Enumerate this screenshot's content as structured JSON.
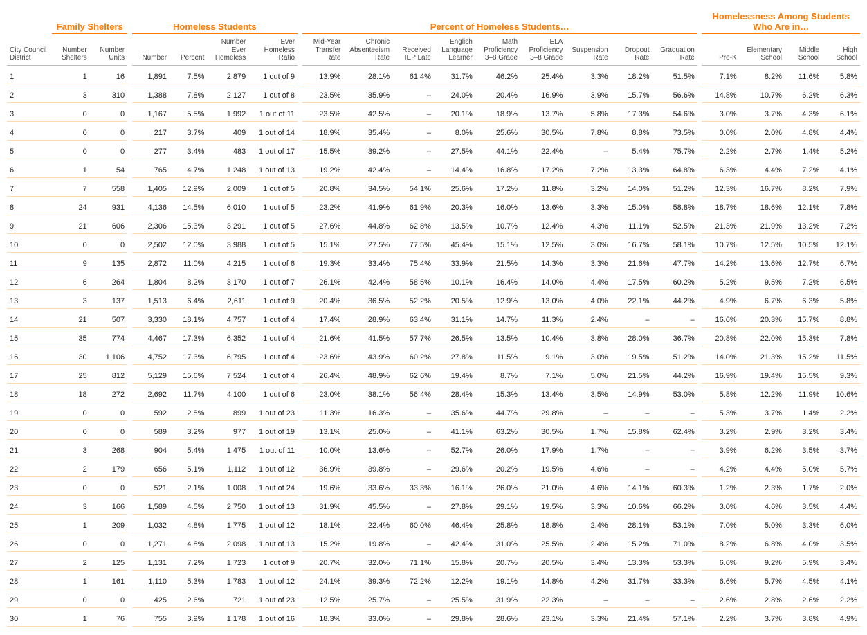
{
  "accent_color": "#ff7900",
  "row_border_color": "#ffd9b3",
  "groups": [
    {
      "label": "Family Shelters",
      "span": 2
    },
    {
      "label": "Homeless Students",
      "span": 4
    },
    {
      "label": "Percent of Homeless Students…",
      "span": 9
    },
    {
      "label": "Homelessness Among Students Who Are in…",
      "span": 4
    }
  ],
  "columns": [
    "City Council District",
    "Number Shelters",
    "Number Units",
    "Number",
    "Percent",
    "Number Ever Homeless",
    "Ever Homeless Ratio",
    "Mid-Year Transfer Rate",
    "Chronic Absenteeism Rate",
    "Received IEP Late",
    "English Language Learner",
    "Math Proficiency 3–8 Grade",
    "ELA Proficiency 3–8 Grade",
    "Suspension Rate",
    "Dropout Rate",
    "Graduation Rate",
    "Pre-K",
    "Elementary School",
    "Middle School",
    "High School"
  ],
  "rows": [
    [
      "1",
      "1",
      "16",
      "1,891",
      "7.5%",
      "2,879",
      "1 out of 9",
      "13.9%",
      "28.1%",
      "61.4%",
      "31.7%",
      "46.2%",
      "25.4%",
      "3.3%",
      "18.2%",
      "51.5%",
      "7.1%",
      "8.2%",
      "11.6%",
      "5.8%"
    ],
    [
      "2",
      "3",
      "310",
      "1,388",
      "7.8%",
      "2,127",
      "1 out of 8",
      "23.5%",
      "35.9%",
      "–",
      "24.0%",
      "20.4%",
      "16.9%",
      "3.9%",
      "15.7%",
      "56.6%",
      "14.8%",
      "10.7%",
      "6.2%",
      "6.3%"
    ],
    [
      "3",
      "0",
      "0",
      "1,167",
      "5.5%",
      "1,992",
      "1 out of 11",
      "23.5%",
      "42.5%",
      "–",
      "20.1%",
      "18.9%",
      "13.7%",
      "5.8%",
      "17.3%",
      "54.6%",
      "3.0%",
      "3.7%",
      "4.3%",
      "6.1%"
    ],
    [
      "4",
      "0",
      "0",
      "217",
      "3.7%",
      "409",
      "1 out of 14",
      "18.9%",
      "35.4%",
      "–",
      "8.0%",
      "25.6%",
      "30.5%",
      "7.8%",
      "8.8%",
      "73.5%",
      "0.0%",
      "2.0%",
      "4.8%",
      "4.4%"
    ],
    [
      "5",
      "0",
      "0",
      "277",
      "3.4%",
      "483",
      "1 out of 17",
      "15.5%",
      "39.2%",
      "–",
      "27.5%",
      "44.1%",
      "22.4%",
      "–",
      "5.4%",
      "75.7%",
      "2.2%",
      "2.7%",
      "1.4%",
      "5.2%"
    ],
    [
      "6",
      "1",
      "54",
      "765",
      "4.7%",
      "1,248",
      "1 out of 13",
      "19.2%",
      "42.4%",
      "–",
      "14.4%",
      "16.8%",
      "17.2%",
      "7.2%",
      "13.3%",
      "64.8%",
      "6.3%",
      "4.4%",
      "7.2%",
      "4.1%"
    ],
    [
      "7",
      "7",
      "558",
      "1,405",
      "12.9%",
      "2,009",
      "1 out of 5",
      "20.8%",
      "34.5%",
      "54.1%",
      "25.6%",
      "17.2%",
      "11.8%",
      "3.2%",
      "14.0%",
      "51.2%",
      "12.3%",
      "16.7%",
      "8.2%",
      "7.9%"
    ],
    [
      "8",
      "24",
      "931",
      "4,136",
      "14.5%",
      "6,010",
      "1 out of 5",
      "23.2%",
      "41.9%",
      "61.9%",
      "20.3%",
      "16.0%",
      "13.6%",
      "3.3%",
      "15.0%",
      "58.8%",
      "18.7%",
      "18.6%",
      "12.1%",
      "7.8%"
    ],
    [
      "9",
      "21",
      "606",
      "2,306",
      "15.3%",
      "3,291",
      "1 out of 5",
      "27.6%",
      "44.8%",
      "62.8%",
      "13.5%",
      "10.7%",
      "12.4%",
      "4.3%",
      "11.1%",
      "52.5%",
      "21.3%",
      "21.9%",
      "13.2%",
      "7.2%"
    ],
    [
      "10",
      "0",
      "0",
      "2,502",
      "12.0%",
      "3,988",
      "1 out of 5",
      "15.1%",
      "27.5%",
      "77.5%",
      "45.4%",
      "15.1%",
      "12.5%",
      "3.0%",
      "16.7%",
      "58.1%",
      "10.7%",
      "12.5%",
      "10.5%",
      "12.1%"
    ],
    [
      "11",
      "9",
      "135",
      "2,872",
      "11.0%",
      "4,215",
      "1 out of 6",
      "19.3%",
      "33.4%",
      "75.4%",
      "33.9%",
      "21.5%",
      "14.3%",
      "3.3%",
      "21.6%",
      "47.7%",
      "14.2%",
      "13.6%",
      "12.7%",
      "6.7%"
    ],
    [
      "12",
      "6",
      "264",
      "1,804",
      "8.2%",
      "3,170",
      "1 out of 7",
      "26.1%",
      "42.4%",
      "58.5%",
      "10.1%",
      "16.4%",
      "14.0%",
      "4.4%",
      "17.5%",
      "60.2%",
      "5.2%",
      "9.5%",
      "7.2%",
      "6.5%"
    ],
    [
      "13",
      "3",
      "137",
      "1,513",
      "6.4%",
      "2,611",
      "1 out of 9",
      "20.4%",
      "36.5%",
      "52.2%",
      "20.5%",
      "12.9%",
      "13.0%",
      "4.0%",
      "22.1%",
      "44.2%",
      "4.9%",
      "6.7%",
      "6.3%",
      "5.8%"
    ],
    [
      "14",
      "21",
      "507",
      "3,330",
      "18.1%",
      "4,757",
      "1 out of 4",
      "17.4%",
      "28.9%",
      "63.4%",
      "31.1%",
      "14.7%",
      "11.3%",
      "2.4%",
      "–",
      "–",
      "16.6%",
      "20.3%",
      "15.7%",
      "8.8%"
    ],
    [
      "15",
      "35",
      "774",
      "4,467",
      "17.3%",
      "6,352",
      "1 out of 4",
      "21.6%",
      "41.5%",
      "57.7%",
      "26.5%",
      "13.5%",
      "10.4%",
      "3.8%",
      "28.0%",
      "36.7%",
      "20.8%",
      "22.0%",
      "15.3%",
      "7.8%"
    ],
    [
      "16",
      "30",
      "1,106",
      "4,752",
      "17.3%",
      "6,795",
      "1 out of 4",
      "23.6%",
      "43.9%",
      "60.2%",
      "27.8%",
      "11.5%",
      "9.1%",
      "3.0%",
      "19.5%",
      "51.2%",
      "14.0%",
      "21.3%",
      "15.2%",
      "11.5%"
    ],
    [
      "17",
      "25",
      "812",
      "5,129",
      "15.6%",
      "7,524",
      "1 out of 4",
      "26.4%",
      "48.9%",
      "62.6%",
      "19.4%",
      "8.7%",
      "7.1%",
      "5.0%",
      "21.5%",
      "44.2%",
      "16.9%",
      "19.4%",
      "15.5%",
      "9.3%"
    ],
    [
      "18",
      "18",
      "272",
      "2,692",
      "11.7%",
      "4,100",
      "1 out of 6",
      "23.0%",
      "38.1%",
      "56.4%",
      "28.4%",
      "15.3%",
      "13.4%",
      "3.5%",
      "14.9%",
      "53.0%",
      "5.8%",
      "12.2%",
      "11.9%",
      "10.6%"
    ],
    [
      "19",
      "0",
      "0",
      "592",
      "2.8%",
      "899",
      "1 out of 23",
      "11.3%",
      "16.3%",
      "–",
      "35.6%",
      "44.7%",
      "29.8%",
      "–",
      "–",
      "–",
      "5.3%",
      "3.7%",
      "1.4%",
      "2.2%"
    ],
    [
      "20",
      "0",
      "0",
      "589",
      "3.2%",
      "977",
      "1 out of 19",
      "13.1%",
      "25.0%",
      "–",
      "41.1%",
      "63.2%",
      "30.5%",
      "1.7%",
      "15.8%",
      "62.4%",
      "3.2%",
      "2.9%",
      "3.2%",
      "3.4%"
    ],
    [
      "21",
      "3",
      "268",
      "904",
      "5.4%",
      "1,475",
      "1 out of 11",
      "10.0%",
      "13.6%",
      "–",
      "52.7%",
      "26.0%",
      "17.9%",
      "1.7%",
      "–",
      "–",
      "3.9%",
      "6.2%",
      "3.5%",
      "3.7%"
    ],
    [
      "22",
      "2",
      "179",
      "656",
      "5.1%",
      "1,112",
      "1 out of 12",
      "36.9%",
      "39.8%",
      "–",
      "29.6%",
      "20.2%",
      "19.5%",
      "4.6%",
      "–",
      "–",
      "4.2%",
      "4.4%",
      "5.0%",
      "5.7%"
    ],
    [
      "23",
      "0",
      "0",
      "521",
      "2.1%",
      "1,008",
      "1 out of 24",
      "19.6%",
      "33.6%",
      "33.3%",
      "16.1%",
      "26.0%",
      "21.0%",
      "4.6%",
      "14.1%",
      "60.3%",
      "1.2%",
      "2.3%",
      "1.7%",
      "2.0%"
    ],
    [
      "24",
      "3",
      "166",
      "1,589",
      "4.5%",
      "2,750",
      "1 out of 13",
      "31.9%",
      "45.5%",
      "–",
      "27.8%",
      "29.1%",
      "19.5%",
      "3.3%",
      "10.6%",
      "66.2%",
      "3.0%",
      "4.6%",
      "3.5%",
      "4.4%"
    ],
    [
      "25",
      "1",
      "209",
      "1,032",
      "4.8%",
      "1,775",
      "1 out of 12",
      "18.1%",
      "22.4%",
      "60.0%",
      "46.4%",
      "25.8%",
      "18.8%",
      "2.4%",
      "28.1%",
      "53.1%",
      "7.0%",
      "5.0%",
      "3.3%",
      "6.0%"
    ],
    [
      "26",
      "0",
      "0",
      "1,271",
      "4.8%",
      "2,098",
      "1 out of 13",
      "15.2%",
      "19.8%",
      "–",
      "42.4%",
      "31.0%",
      "25.5%",
      "2.4%",
      "15.2%",
      "71.0%",
      "8.2%",
      "6.8%",
      "4.0%",
      "3.5%"
    ],
    [
      "27",
      "2",
      "125",
      "1,131",
      "7.2%",
      "1,723",
      "1 out of 9",
      "20.7%",
      "32.0%",
      "71.1%",
      "15.8%",
      "20.7%",
      "20.5%",
      "3.4%",
      "13.3%",
      "53.3%",
      "6.6%",
      "9.2%",
      "5.9%",
      "3.4%"
    ],
    [
      "28",
      "1",
      "161",
      "1,110",
      "5.3%",
      "1,783",
      "1 out of 12",
      "24.1%",
      "39.3%",
      "72.2%",
      "12.2%",
      "19.1%",
      "14.8%",
      "4.2%",
      "31.7%",
      "33.3%",
      "6.6%",
      "5.7%",
      "4.5%",
      "4.1%"
    ],
    [
      "29",
      "0",
      "0",
      "425",
      "2.6%",
      "721",
      "1 out of 23",
      "12.5%",
      "25.7%",
      "–",
      "25.5%",
      "31.9%",
      "22.3%",
      "–",
      "–",
      "–",
      "2.6%",
      "2.8%",
      "2.6%",
      "2.2%"
    ],
    [
      "30",
      "1",
      "76",
      "755",
      "3.9%",
      "1,178",
      "1 out of 16",
      "18.3%",
      "33.0%",
      "–",
      "29.8%",
      "28.6%",
      "23.1%",
      "3.3%",
      "21.4%",
      "57.1%",
      "2.2%",
      "3.7%",
      "3.8%",
      "4.9%"
    ]
  ]
}
